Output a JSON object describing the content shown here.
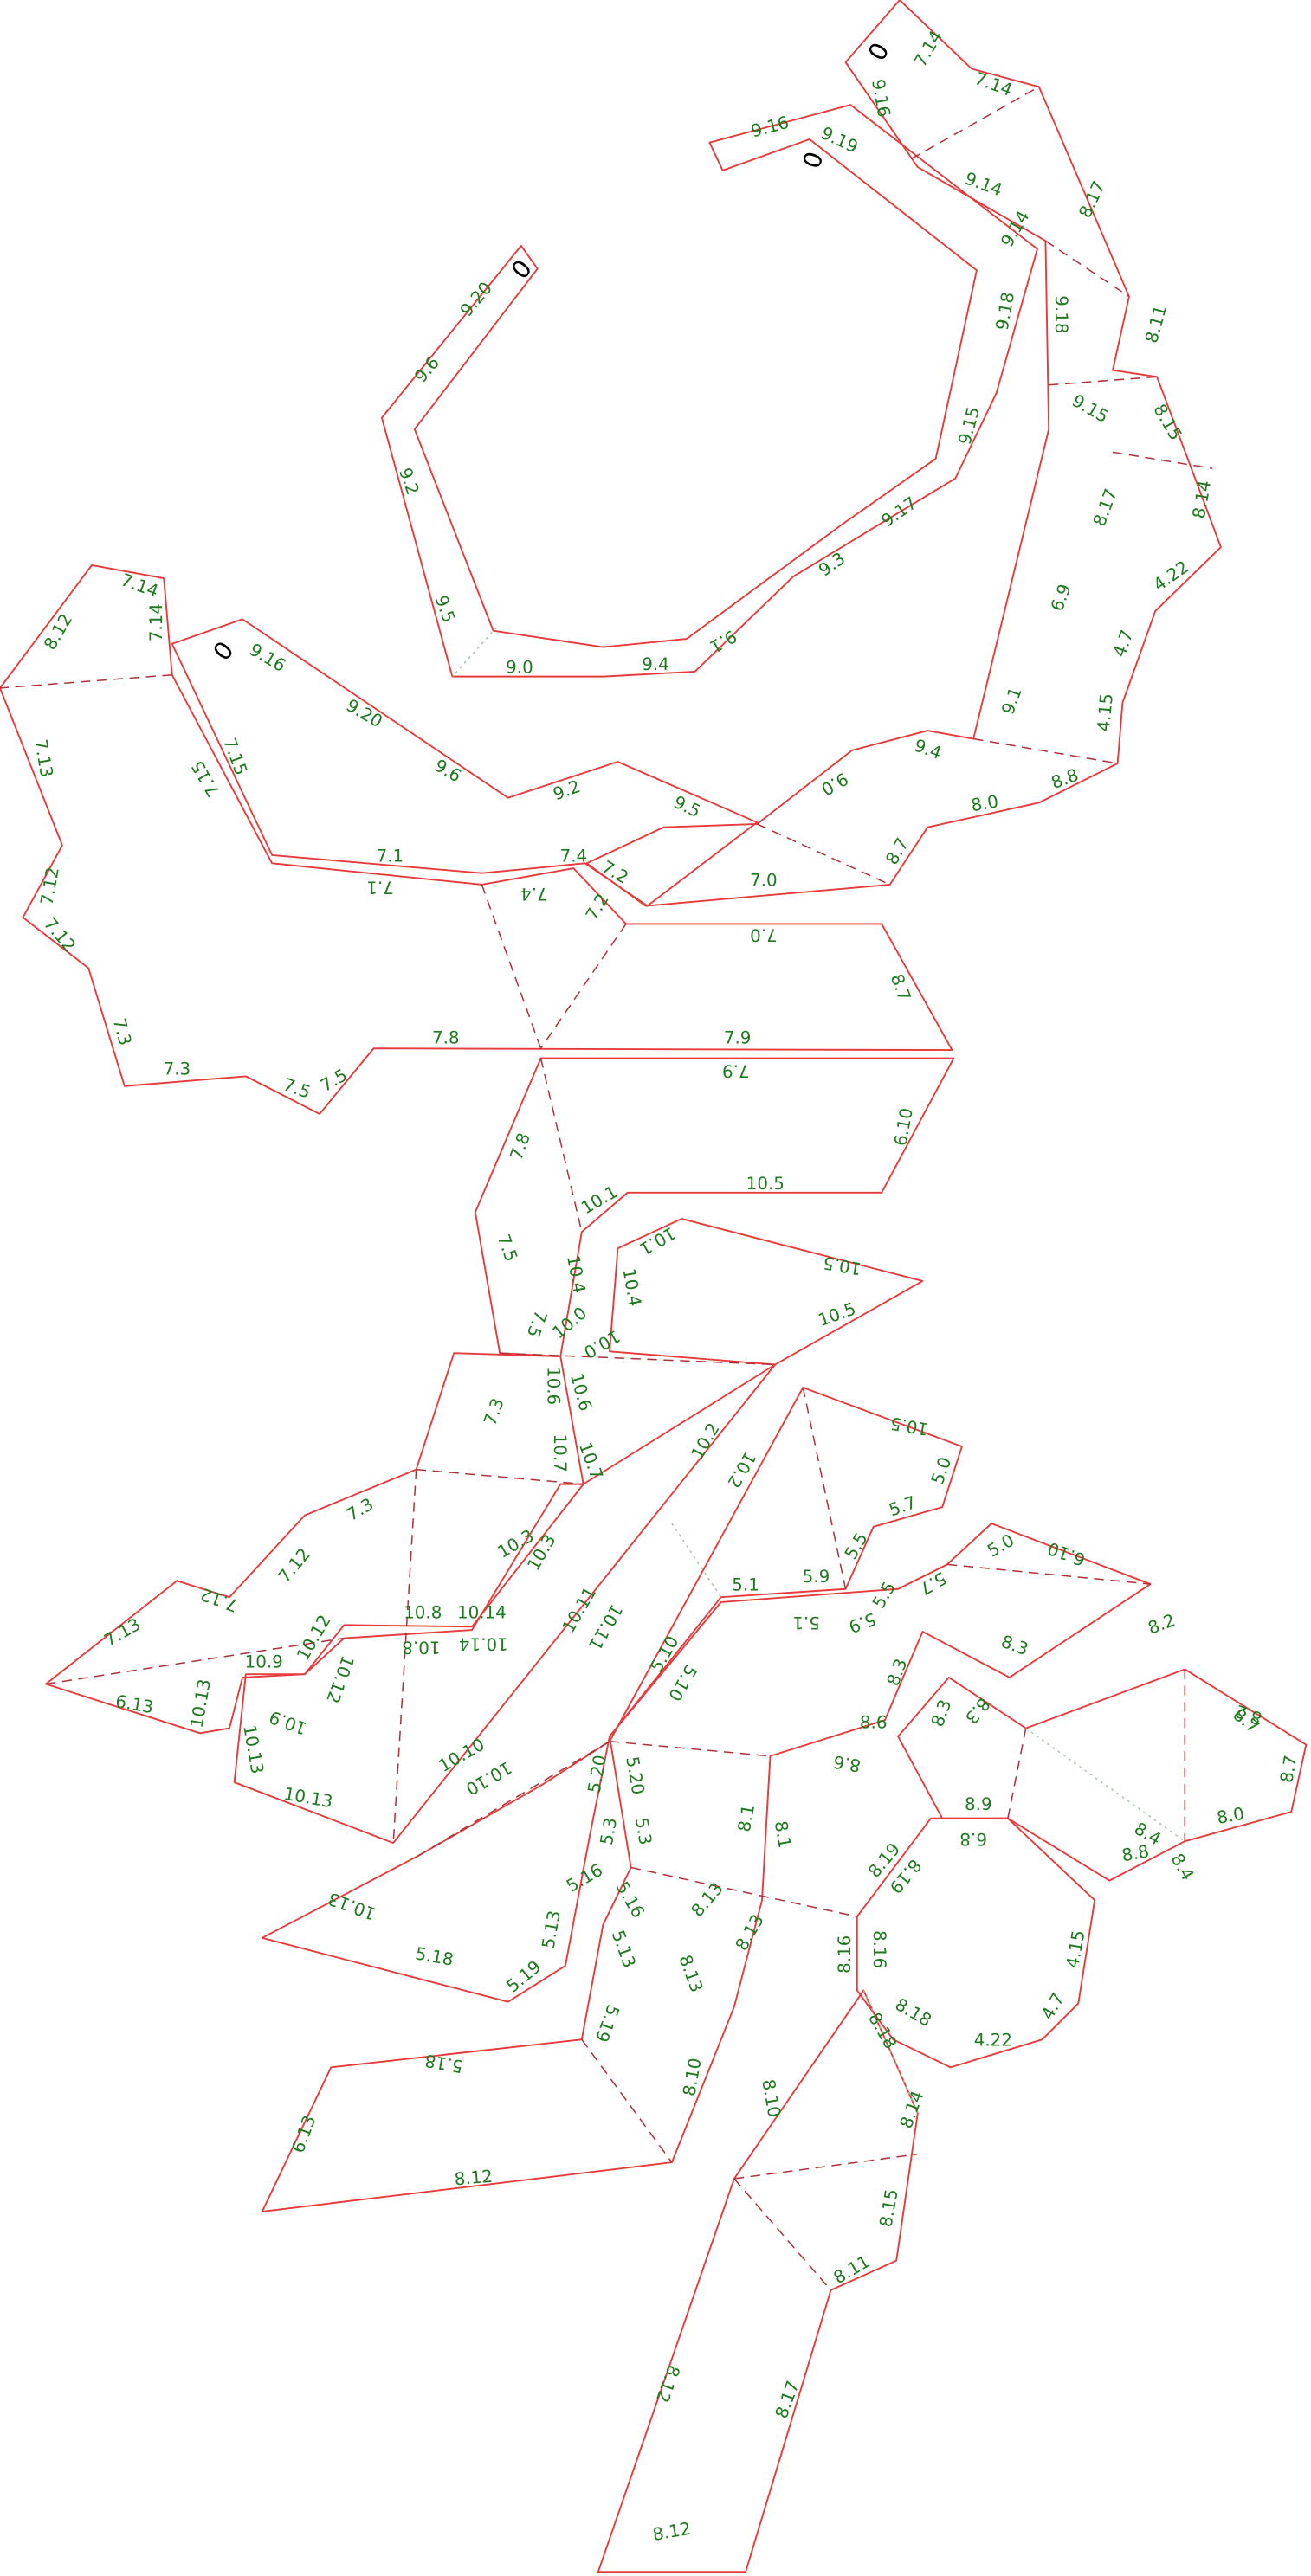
{
  "labels": [
    "0",
    "7.14",
    "9.16",
    "7.14",
    "9.14",
    "8.17",
    "9.14",
    "9.18",
    "9.18",
    "8.11",
    "9.15",
    "8.15",
    "9.15",
    "8.17",
    "8.14",
    "6.9",
    "4.22",
    "4.7",
    "9.1",
    "4.15",
    "9.4",
    "8.8",
    "8.0",
    "9.0",
    "8.7",
    "9.5",
    "7.0",
    "7.0",
    "8.7",
    "0",
    "9.16",
    "9.19",
    "0",
    "9.20",
    "9.6",
    "9.2",
    "9.5",
    "9.0",
    "9.4",
    "9.1",
    "9.3",
    "9.17",
    "8.12",
    "7.14",
    "7.14",
    "0",
    "9.16",
    "9.20",
    "9.6",
    "7.13",
    "7.15",
    "7.15",
    "9.2",
    "7.1",
    "7.1",
    "7.4",
    "7.4",
    "7.2",
    "7.2",
    "7.12",
    "7.12",
    "7.3",
    "7.3",
    "7.5",
    "7.5",
    "7.8",
    "7.9",
    "7.9",
    "7.8",
    "6.10",
    "10.5",
    "10.1",
    "7.5",
    "10.4",
    "10.1",
    "10.5",
    "10.4",
    "7.5",
    "10.0",
    "10.0",
    "10.5",
    "10.6",
    "10.6",
    "7.3",
    "10.2",
    "10.7",
    "10.7",
    "10.5",
    "5.0",
    "10.2",
    "7.3",
    "5.7",
    "10.3",
    "10.3",
    "5.5",
    "7.12",
    "6.10",
    "5.0",
    "5.1",
    "5.9",
    "5.5",
    "5.7",
    "7.12",
    "10.8",
    "10.14",
    "10.11",
    "10.11",
    "5.1",
    "5.9",
    "8.2",
    "7.13",
    "10.12",
    "10.9",
    "10.8",
    "10.14",
    "10.12",
    "5.10",
    "5.10",
    "8.3",
    "8.3",
    "10.13",
    "6.13",
    "10.9",
    "8.3",
    "8.3",
    "8.2",
    "8.7",
    "8.7",
    "8.6",
    "10.13",
    "5.20",
    "5.20",
    "8.6",
    "10.10",
    "10.10",
    "10.13",
    "8.9",
    "8.0",
    "5.3",
    "5.3",
    "8.1",
    "8.1",
    "8.19",
    "6.8",
    "8.4",
    "8.8",
    "8.4",
    "5.16",
    "5.16",
    "8.13",
    "8.19",
    "10.13",
    "5.13",
    "8.13",
    "8.16",
    "8.16",
    "4.15",
    "5.18",
    "5.13",
    "8.13",
    "5.19",
    "4.7",
    "8.18",
    "8.18",
    "5.19",
    "4.22",
    "5.18",
    "8.10",
    "8.10",
    "8.14",
    "6.13",
    "8.12",
    "8.15",
    "8.11",
    "8.12",
    "8.17",
    "8.12"
  ]
}
